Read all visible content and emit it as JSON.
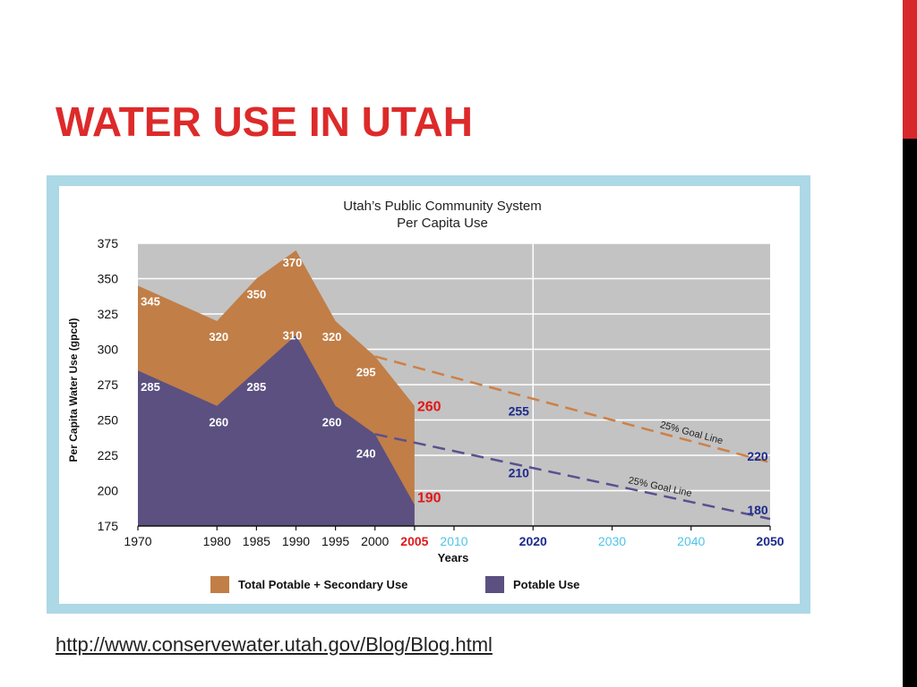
{
  "slide": {
    "title": "WATER USE IN UTAH",
    "source_link": "http://www.conservewater.utah.gov/Blog/Blog.html"
  },
  "colors": {
    "title": "#dd2a2a",
    "side_red": "#d8282c",
    "side_black": "#000000",
    "total_area": "#c17e47",
    "potable_area": "#5b5080",
    "plot_bg": "#c3c3c3",
    "goal_total_line": "#cd8046",
    "goal_potable_line": "#5a5090",
    "label_red": "#e01818",
    "label_navy": "#1c2a8c",
    "label_cyan": "#4ec4e8",
    "link": "#222222"
  },
  "chart_data": {
    "type": "area",
    "title": "Utah’s Public Community System",
    "subtitle": "Per Capita Use",
    "xlabel": "Years",
    "ylabel": "Per Capita Water Use (gpcd)",
    "xlim": [
      1970,
      2050
    ],
    "ylim": [
      175,
      375
    ],
    "yticks": [
      175,
      200,
      225,
      250,
      275,
      300,
      325,
      350,
      375
    ],
    "xticks": [
      {
        "value": 1970,
        "label": "1970",
        "color": "#111111"
      },
      {
        "value": 1980,
        "label": "1980",
        "color": "#111111"
      },
      {
        "value": 1985,
        "label": "1985",
        "color": "#111111"
      },
      {
        "value": 1990,
        "label": "1990",
        "color": "#111111"
      },
      {
        "value": 1995,
        "label": "1995",
        "color": "#111111"
      },
      {
        "value": 2000,
        "label": "2000",
        "color": "#111111"
      },
      {
        "value": 2005,
        "label": "2005",
        "color": "#e01818"
      },
      {
        "value": 2010,
        "label": "2010",
        "color": "#4ec4e8"
      },
      {
        "value": 2020,
        "label": "2020",
        "color": "#1c2a8c"
      },
      {
        "value": 2030,
        "label": "2030",
        "color": "#4ec4e8"
      },
      {
        "value": 2040,
        "label": "2040",
        "color": "#4ec4e8"
      },
      {
        "value": 2050,
        "label": "2050",
        "color": "#1c2a8c"
      }
    ],
    "grid": true,
    "legend_position": "bottom",
    "series": [
      {
        "name": "Total Potable + Secondary Use",
        "color": "#c17e47",
        "points": [
          [
            1970,
            345
          ],
          [
            1980,
            320
          ],
          [
            1985,
            350
          ],
          [
            1990,
            370
          ],
          [
            1995,
            320
          ],
          [
            2000,
            295
          ],
          [
            2005,
            260
          ]
        ],
        "labels": [
          {
            "x": 1970,
            "text": "345"
          },
          {
            "x": 1980,
            "text": "320"
          },
          {
            "x": 1985,
            "text": "350"
          },
          {
            "x": 1990,
            "text": "370"
          },
          {
            "x": 1995,
            "text": "320"
          },
          {
            "x": 2000,
            "text": "295"
          },
          {
            "x": 2005,
            "text": "260"
          }
        ]
      },
      {
        "name": "Potable Use",
        "color": "#5b5080",
        "points": [
          [
            1970,
            285
          ],
          [
            1980,
            260
          ],
          [
            1985,
            285
          ],
          [
            1990,
            310
          ],
          [
            1995,
            260
          ],
          [
            2000,
            240
          ],
          [
            2005,
            190
          ]
        ],
        "labels": [
          {
            "x": 1970,
            "text": "285"
          },
          {
            "x": 1980,
            "text": "260"
          },
          {
            "x": 1985,
            "text": "285"
          },
          {
            "x": 1990,
            "text": "310"
          },
          {
            "x": 1995,
            "text": "260"
          },
          {
            "x": 2000,
            "text": "240"
          },
          {
            "x": 2005,
            "text": "190"
          }
        ]
      }
    ],
    "goal_lines": [
      {
        "label": "25% Goal Line",
        "color": "#cd8046",
        "points": [
          [
            2000,
            295
          ],
          [
            2050,
            220
          ]
        ]
      },
      {
        "label": "25% Goal Line",
        "color": "#5a5090",
        "points": [
          [
            2000,
            240
          ],
          [
            2050,
            180
          ]
        ]
      }
    ],
    "annotations": [
      {
        "x": 2020,
        "y": 255,
        "text": "255",
        "color": "#1c2a8c"
      },
      {
        "x": 2050,
        "y": 220,
        "text": "220",
        "color": "#1c2a8c"
      },
      {
        "x": 2020,
        "y": 210,
        "text": "210",
        "color": "#1c2a8c"
      },
      {
        "x": 2050,
        "y": 180,
        "text": "180",
        "color": "#1c2a8c"
      }
    ]
  }
}
